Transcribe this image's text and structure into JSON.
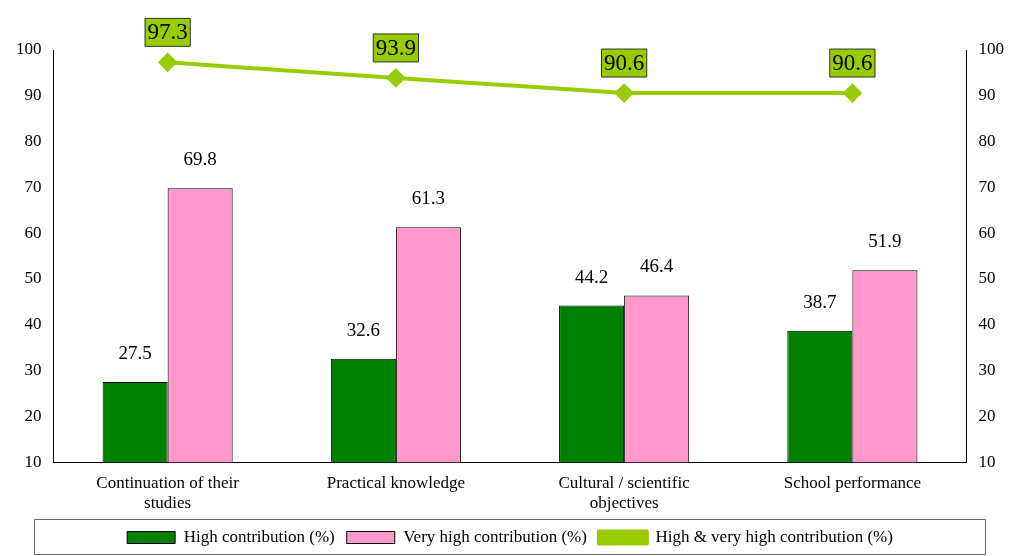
{
  "chart_data": {
    "type": "bar",
    "categories": [
      "Continuation of their studies",
      "Practical knowledge",
      "Cultural / scientific objectives",
      "School performance"
    ],
    "series": [
      {
        "name": "High contribution (%)",
        "color": "#008000",
        "values": [
          27.5,
          32.6,
          44.2,
          38.7
        ]
      },
      {
        "name": "Very high contribution (%)",
        "color": "#ff99cc",
        "values": [
          69.8,
          61.3,
          46.4,
          51.9
        ]
      },
      {
        "name": "High & very high contribution (%)",
        "type": "line",
        "color": "#99cc00",
        "marker": "diamond",
        "values": [
          97.3,
          93.9,
          90.6,
          90.6
        ]
      }
    ],
    "ylim": [
      10,
      100
    ],
    "yticks": [
      10,
      20,
      30,
      40,
      50,
      60,
      70,
      80,
      90,
      100
    ],
    "y2lim": [
      10,
      100
    ],
    "y2ticks": [
      10,
      20,
      30,
      40,
      50,
      60,
      70,
      80,
      90,
      100
    ],
    "data_labels": true,
    "grid": false,
    "legend": "bottom"
  }
}
